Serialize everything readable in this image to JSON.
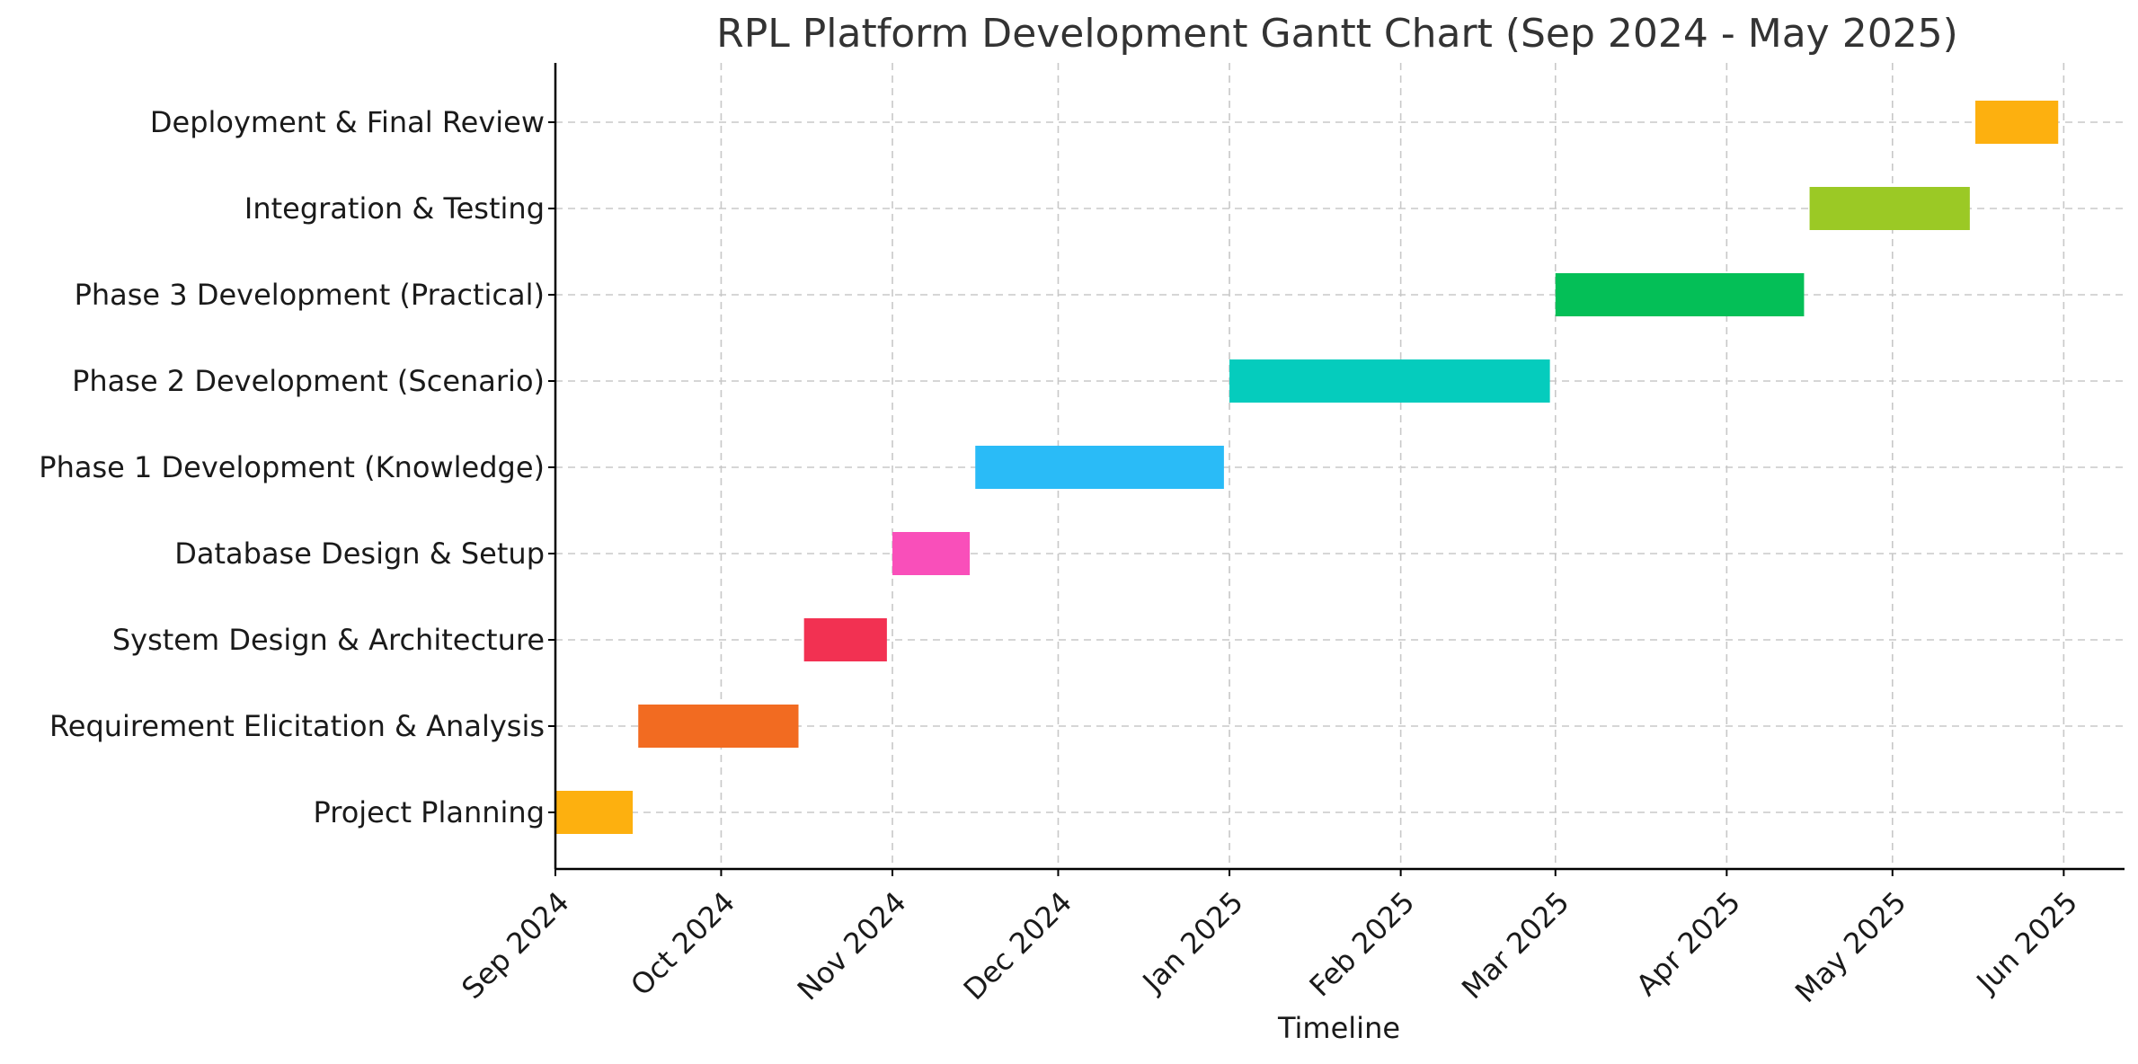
{
  "chart_data": {
    "type": "gantt",
    "title": "RPL Platform Development Gantt Chart (Sep 2024 - May 2025)",
    "xlabel": "Timeline",
    "ylabel": "",
    "x_ticks": [
      "Sep 2024",
      "Oct 2024",
      "Nov 2024",
      "Dec 2024",
      "Jan 2025",
      "Feb 2025",
      "Mar 2025",
      "Apr 2025",
      "May 2025",
      "Jun 2025"
    ],
    "x_tick_dates": [
      "2024-09-01",
      "2024-10-01",
      "2024-11-01",
      "2024-12-01",
      "2025-01-01",
      "2025-02-01",
      "2025-03-01",
      "2025-04-01",
      "2025-05-01",
      "2025-06-01"
    ],
    "xlim": [
      "2024-09-01",
      "2025-06-12"
    ],
    "grid": true,
    "tasks": [
      {
        "name": "Project Planning",
        "start": "2024-09-01",
        "end": "2024-09-15",
        "color": "#FDB00F"
      },
      {
        "name": "Requirement Elicitation & Analysis",
        "start": "2024-09-16",
        "end": "2024-10-15",
        "color": "#F26B21"
      },
      {
        "name": "System Design & Architecture",
        "start": "2024-10-16",
        "end": "2024-10-31",
        "color": "#F23152"
      },
      {
        "name": "Database Design & Setup",
        "start": "2024-11-01",
        "end": "2024-11-15",
        "color": "#F94FBA"
      },
      {
        "name": "Phase 1 Development (Knowledge)",
        "start": "2024-11-16",
        "end": "2024-12-31",
        "color": "#2ABBF7"
      },
      {
        "name": "Phase 2 Development (Scenario)",
        "start": "2025-01-01",
        "end": "2025-02-28",
        "color": "#05CCBD"
      },
      {
        "name": "Phase 3 Development (Practical)",
        "start": "2025-03-01",
        "end": "2025-04-15",
        "color": "#04BF57"
      },
      {
        "name": "Integration & Testing",
        "start": "2025-04-16",
        "end": "2025-05-15",
        "color": "#9BC925"
      },
      {
        "name": "Deployment & Final Review",
        "start": "2025-05-16",
        "end": "2025-05-31",
        "color": "#FDB00F"
      }
    ]
  }
}
